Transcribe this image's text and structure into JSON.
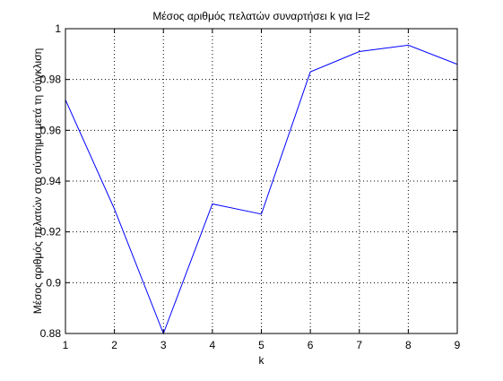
{
  "chart_data": {
    "type": "line",
    "title": "Μέσος αριθμός πελατών συναρτήσει k για l=2",
    "xlabel": "k",
    "ylabel": "Μέσος αριθμός πελατών στο σύστημα μετά τη σύγκλιση",
    "xlim": [
      1,
      9
    ],
    "ylim": [
      0.88,
      1.0
    ],
    "xticks": [
      "1",
      "2",
      "3",
      "4",
      "5",
      "6",
      "7",
      "8",
      "9"
    ],
    "yticks": [
      "0.88",
      "0.9",
      "0.92",
      "0.94",
      "0.96",
      "0.98",
      "1"
    ],
    "grid": true,
    "series": [
      {
        "color": "#0000ff",
        "x": [
          1,
          2,
          3,
          4,
          5,
          6,
          7,
          8,
          9
        ],
        "y": [
          0.972,
          0.929,
          0.88,
          0.931,
          0.927,
          0.983,
          0.991,
          0.9935,
          0.986
        ]
      }
    ]
  }
}
